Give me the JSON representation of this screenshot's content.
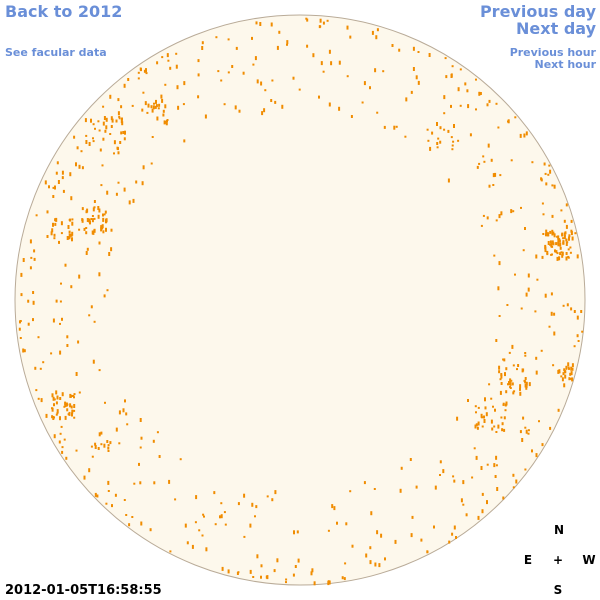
{
  "nav": {
    "back_year": "Back to 2012",
    "see_facular": "See facular data",
    "previous_day": "Previous day",
    "next_day": "Next day",
    "previous_hour": "Previous hour",
    "next_hour": "Next hour"
  },
  "compass": {
    "north": "N",
    "east": "E",
    "center": "+",
    "west": "W",
    "south": "S"
  },
  "timestamp": "2012-01-05T16:58:55"
}
